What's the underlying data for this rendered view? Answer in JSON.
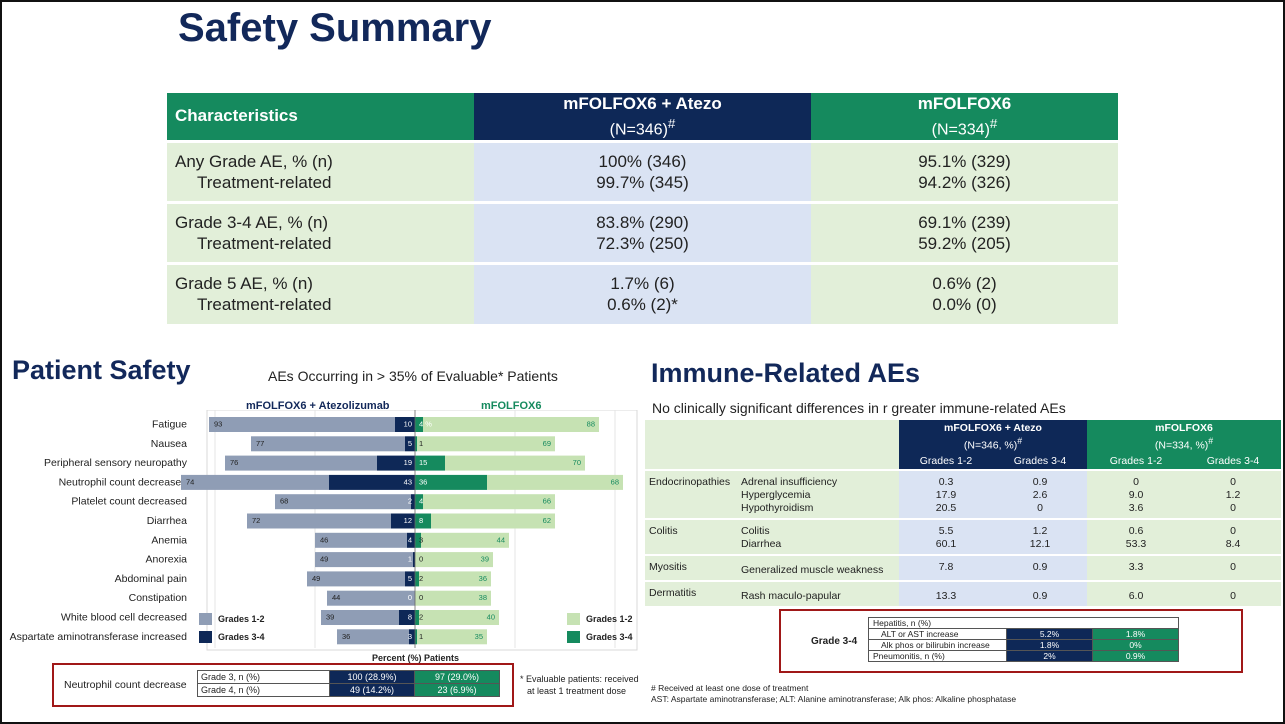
{
  "title": "Safety Summary",
  "summary_table": {
    "header": {
      "characteristics": "Characteristics",
      "arm1_name": "mFOLFOX6 + Atezo",
      "arm1_n": "(N=346)",
      "arm2_name": "mFOLFOX6",
      "arm2_n": "(N=334)",
      "mark": "#"
    },
    "rows": [
      {
        "label": "Any Grade AE, % (n)",
        "sublabel": "Treatment-related",
        "arm1": "100% (346)",
        "arm1_tr": "99.7% (345)",
        "arm2": "95.1% (329)",
        "arm2_tr": "94.2% (326)"
      },
      {
        "label": "Grade 3-4 AE, % (n)",
        "sublabel": "Treatment-related",
        "arm1": "83.8% (290)",
        "arm1_tr": "72.3% (250)",
        "arm2": "69.1% (239)",
        "arm2_tr": "59.2% (205)"
      },
      {
        "label": "Grade 5 AE, % (n)",
        "sublabel": "Treatment-related",
        "arm1": "1.7% (6)",
        "arm1_tr": "0.6% (2)*",
        "arm2": "0.6% (2)",
        "arm2_tr": "0.0% (0)"
      }
    ]
  },
  "patient_safety": {
    "heading": "Patient Safety",
    "subtitle": "AEs Occurring in > 35% of Evaluable* Patients",
    "arm1_label": "mFOLFOX6 + Atezolizumab",
    "arm2_label": "mFOLFOX6",
    "x_axis_title": "Percent (%) Patients",
    "legend": {
      "g12": "Grades 1-2",
      "g34": "Grades 3-4"
    },
    "colors": {
      "atezo_g12": "#8f9db5",
      "atezo_g34": "#0e2857",
      "folfox_g12": "#c6e2b3",
      "folfox_g34": "#158a5e"
    },
    "neutrophil_box": {
      "label": "Neutrophil count decrease",
      "rows": [
        {
          "label": "Grade 3, n (%)",
          "arm1": "100 (28.9%)",
          "arm2": "97 (29.0%)"
        },
        {
          "label": "Grade 4, n (%)",
          "arm1": "49 (14.2%)",
          "arm2": "23 (6.9%)"
        }
      ]
    },
    "footnote_lines": [
      "* Evaluable patients: received",
      "at least 1 treatment dose"
    ]
  },
  "chart_data": {
    "type": "bar",
    "orientation": "horizontal-butterfly",
    "title": "AEs Occurring in > 35% of Evaluable* Patients",
    "xlabel": "Percent (%) Patients",
    "categories": [
      "Fatigue",
      "Nausea",
      "Peripheral sensory neuropathy",
      "Neutrophil count decreased",
      "Platelet count decreased",
      "Diarrhea",
      "Anemia",
      "Anorexia",
      "Abdominal pain",
      "Constipation",
      "White blood cell decreased",
      "Aspartate aminotransferase increased"
    ],
    "series": [
      {
        "name": "mFOLFOX6 + Atezolizumab Grades 1-2",
        "values": [
          93,
          77,
          76,
          74,
          68,
          72,
          46,
          49,
          49,
          44,
          39,
          36
        ]
      },
      {
        "name": "mFOLFOX6 + Atezolizumab Grades 3-4",
        "values": [
          10,
          5,
          19,
          43,
          2,
          12,
          4,
          1,
          5,
          0,
          8,
          3
        ]
      },
      {
        "name": "mFOLFOX6 Grades 1-2",
        "values": [
          88,
          69,
          70,
          68,
          66,
          62,
          44,
          39,
          36,
          38,
          40,
          35
        ]
      },
      {
        "name": "mFOLFOX6 Grades 3-4",
        "values": [
          4,
          1,
          15,
          36,
          4,
          8,
          3,
          0,
          2,
          0,
          2,
          1
        ]
      }
    ],
    "value_labels": {
      "atezo_g12": [
        "93",
        "77",
        "76",
        "74",
        "68",
        "72",
        "46",
        "49",
        "49",
        "44",
        "39",
        "36"
      ],
      "atezo_g34": [
        "10",
        "5",
        "19",
        "43",
        "2",
        "12",
        "4",
        "1",
        "5",
        "0",
        "8",
        "3"
      ],
      "folfox_g34": [
        "4 %",
        "1",
        "15",
        "36",
        "4",
        "8",
        "3",
        "0",
        "2",
        "0",
        "2",
        "1"
      ],
      "folfox_g12": [
        "88",
        "69",
        "70",
        "68",
        "66",
        "62",
        "44",
        "39",
        "36",
        "38",
        "40",
        "35"
      ]
    }
  },
  "immune": {
    "heading": "Immune-Related AEs",
    "subtitle": "No clinically significant differences in r greater immune-related AEs",
    "arm1_name": "mFOLFOX6 + Atezo",
    "arm1_n": "(N=346, %)",
    "arm2_name": "mFOLFOX6",
    "arm2_n": "(N=334, %)",
    "mark": "#",
    "grade12": "Grades 1-2",
    "grade34": "Grades 3-4",
    "rows": [
      {
        "category": "Endocrinopathies",
        "items": [
          {
            "term": "Adrenal insufficiency",
            "a12": "0.3",
            "a34": "0.9",
            "f12": "0",
            "f34": "0"
          },
          {
            "term": "Hyperglycemia",
            "a12": "17.9",
            "a34": "2.6",
            "f12": "9.0",
            "f34": "1.2"
          },
          {
            "term": "Hypothyroidism",
            "a12": "20.5",
            "a34": "0",
            "f12": "3.6",
            "f34": "0"
          }
        ]
      },
      {
        "category": "Colitis",
        "items": [
          {
            "term": "Colitis",
            "a12": "5.5",
            "a34": "1.2",
            "f12": "0.6",
            "f34": "0"
          },
          {
            "term": "Diarrhea",
            "a12": "60.1",
            "a34": "12.1",
            "f12": "53.3",
            "f34": "8.4"
          }
        ]
      },
      {
        "category": "Myositis",
        "items": [
          {
            "term": "Generalized muscle weakness",
            "a12": "7.8",
            "a34": "0.9",
            "f12": "3.3",
            "f34": "0"
          }
        ]
      },
      {
        "category": "Dermatitis",
        "items": [
          {
            "term": "Rash maculo-papular",
            "a12": "13.3",
            "a34": "0.9",
            "f12": "6.0",
            "f34": "0"
          }
        ]
      }
    ],
    "grade34_box": {
      "label": "Grade 3-4",
      "hepatitis": "Hepatitis, n (%)",
      "alt": "ALT or AST increase",
      "alt_a": "5.2%",
      "alt_f": "1.8%",
      "alk": "Alk phos or bilirubin increase",
      "alk_a": "1.8%",
      "alk_f": "0%",
      "pneu": "Pneumonitis, n (%)",
      "pneu_a": "2%",
      "pneu_f": "0.9%"
    },
    "footnote_lines": [
      "# Received at least one dose of treatment",
      "AST: Aspartate aminotransferase; ALT: Alanine aminotransferase; Alk phos: Alkaline phosphatase"
    ]
  }
}
